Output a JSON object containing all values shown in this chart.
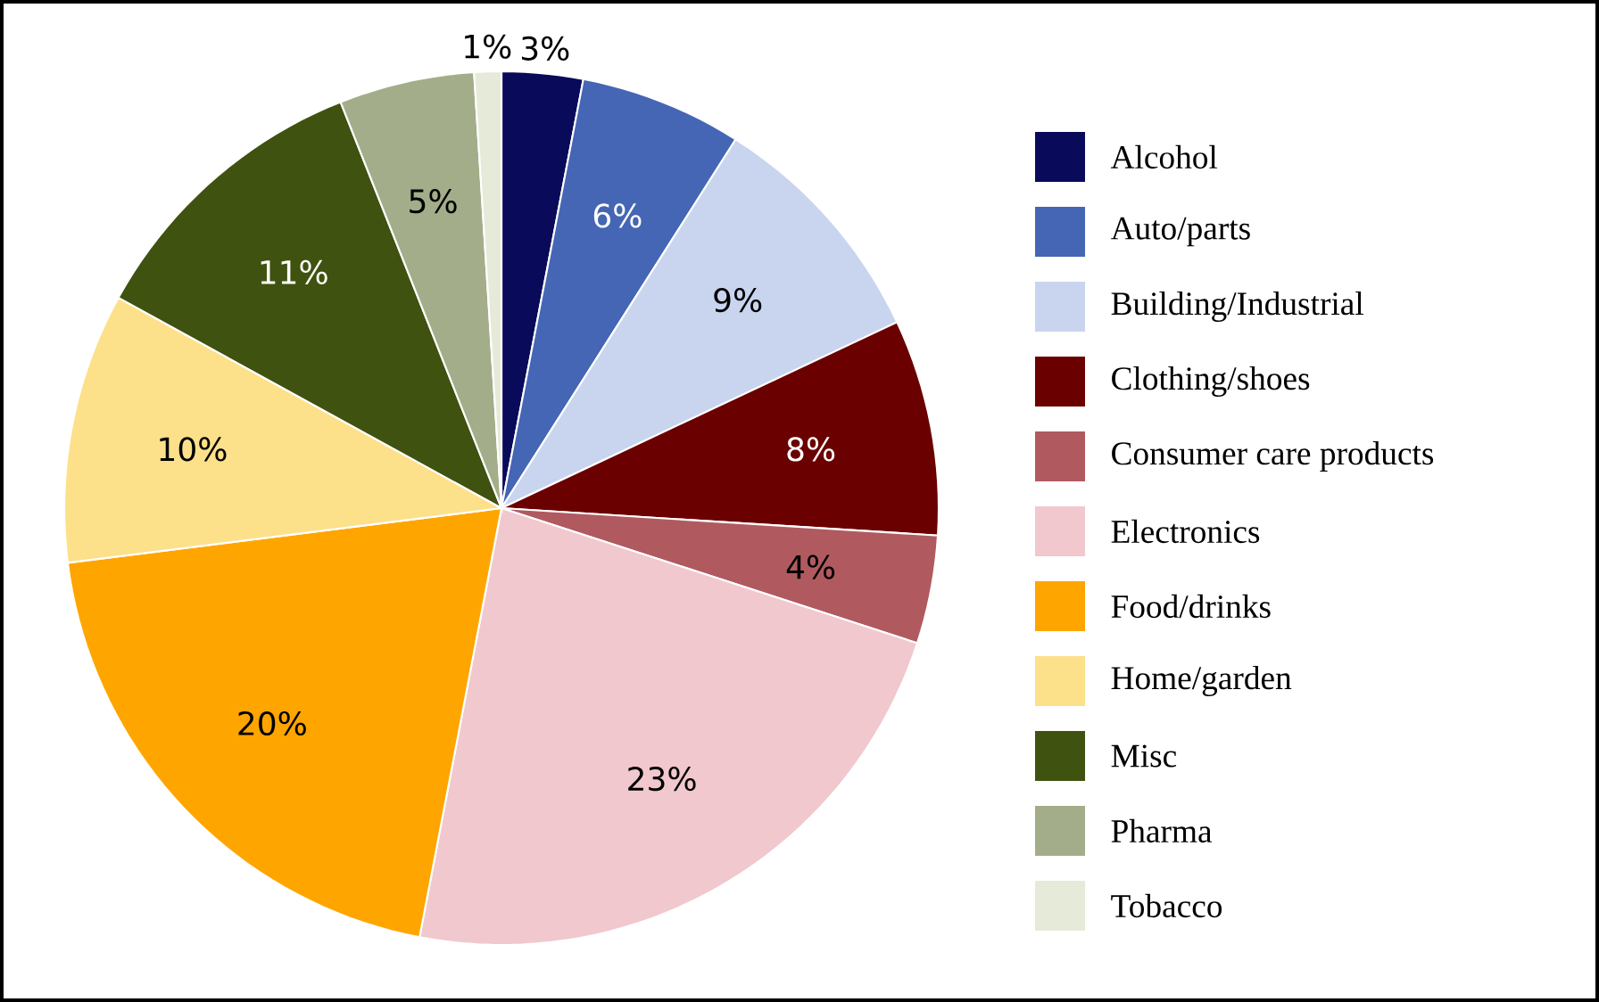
{
  "chart_data": {
    "type": "pie",
    "categories": [
      "Alcohol",
      "Auto/parts",
      "Building/Industrial",
      "Clothing/shoes",
      "Consumer care products",
      "Electronics",
      "Food/drinks",
      "Home/garden",
      "Misc",
      "Pharma",
      "Tobacco"
    ],
    "values": [
      3,
      6,
      9,
      8,
      4,
      23,
      20,
      10,
      11,
      5,
      1
    ],
    "value_labels": [
      "3%",
      "6%",
      "9%",
      "8%",
      "4%",
      "23%",
      "20%",
      "10%",
      "11%",
      "5%",
      "1%"
    ],
    "colors": [
      "#0a0a5a",
      "#4566b4",
      "#c9d5ef",
      "#6b0000",
      "#b05a60",
      "#f0c8ce",
      "#ffa500",
      "#fde08a",
      "#3f5210",
      "#a3ad8a",
      "#e6ead8"
    ],
    "legend": "right"
  }
}
